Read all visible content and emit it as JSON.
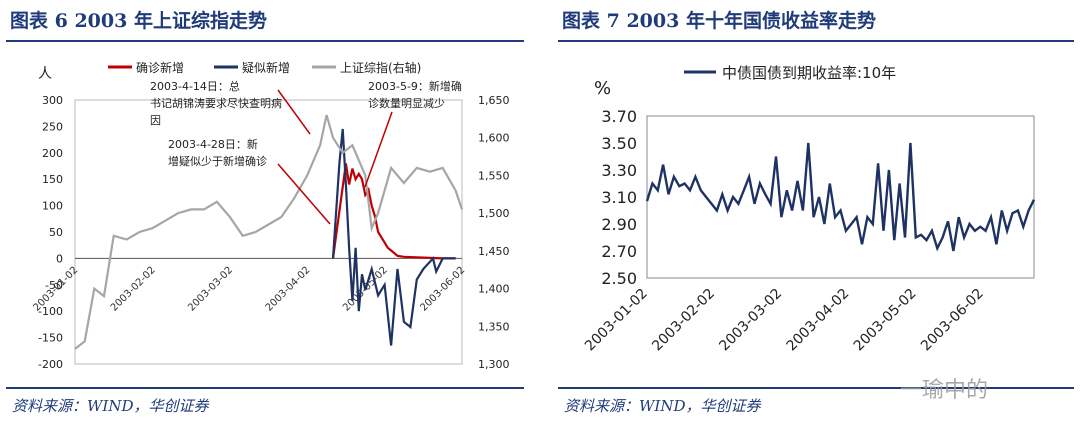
{
  "left": {
    "title": "图表 6   2003 年上证综指走势",
    "source": "资料来源：WIND，华创证券"
  },
  "right": {
    "title": "图表 7   2003 年十年国债收益率走势",
    "source": "资料来源：WIND，华创证券"
  },
  "watermark": "一瑜中的",
  "chart_data": [
    {
      "type": "line",
      "ylabel_left": "人",
      "ylim_left": [
        -200,
        300
      ],
      "yticks_left": [
        "300",
        "250",
        "200",
        "150",
        "100",
        "50",
        "0",
        "-50",
        "-100",
        "-150",
        "-200"
      ],
      "ylim_right": [
        1300,
        1650
      ],
      "yticks_right": [
        "1,650",
        "1,600",
        "1,550",
        "1,500",
        "1,450",
        "1,400",
        "1,350",
        "1,300"
      ],
      "xticks": [
        "2003-01-02",
        "2003-02-02",
        "2003-03-02",
        "2003-04-02",
        "2003-05-02",
        "2003-06-02"
      ],
      "legend": [
        "确诊新增",
        "疑似新增",
        "上证综指(右轴)"
      ],
      "colors": [
        "#c00000",
        "#1f3264",
        "#a6a6a6"
      ],
      "annotations": [
        "2003-4-14日：总书记胡锦涛要求尽快查明病因",
        "2003-5-9：新增确诊数量明显减少",
        "2003-4-28日：新增疑似少于新增确诊"
      ],
      "series": [
        {
          "name": "确诊新增",
          "axis": "left",
          "values": [
            [
              4.0,
              0
            ],
            [
              4.2,
              180
            ],
            [
              4.25,
              140
            ],
            [
              4.3,
              170
            ],
            [
              4.35,
              150
            ],
            [
              4.4,
              160
            ],
            [
              4.45,
              150
            ],
            [
              4.5,
              120
            ],
            [
              4.55,
              130
            ],
            [
              4.6,
              100
            ],
            [
              4.65,
              80
            ],
            [
              4.7,
              50
            ],
            [
              4.75,
              40
            ],
            [
              4.8,
              30
            ],
            [
              4.85,
              20
            ],
            [
              4.9,
              15
            ],
            [
              4.95,
              10
            ],
            [
              5.0,
              5
            ],
            [
              5.1,
              3
            ],
            [
              5.3,
              2
            ],
            [
              5.5,
              1
            ],
            [
              5.7,
              0
            ],
            [
              5.9,
              0
            ]
          ]
        },
        {
          "name": "疑似新增",
          "axis": "left",
          "values": [
            [
              4.0,
              0
            ],
            [
              4.1,
              180
            ],
            [
              4.15,
              245
            ],
            [
              4.2,
              140
            ],
            [
              4.25,
              20
            ],
            [
              4.3,
              -80
            ],
            [
              4.35,
              20
            ],
            [
              4.4,
              -100
            ],
            [
              4.45,
              -30
            ],
            [
              4.5,
              -60
            ],
            [
              4.6,
              -20
            ],
            [
              4.7,
              -70
            ],
            [
              4.8,
              -50
            ],
            [
              4.9,
              -165
            ],
            [
              5.0,
              -20
            ],
            [
              5.1,
              -120
            ],
            [
              5.2,
              -130
            ],
            [
              5.3,
              -40
            ],
            [
              5.4,
              -20
            ],
            [
              5.55,
              0
            ],
            [
              5.6,
              -25
            ],
            [
              5.7,
              0
            ],
            [
              5.9,
              0
            ]
          ]
        },
        {
          "name": "上证综指(右轴)",
          "axis": "right",
          "values": [
            [
              0.0,
              1320
            ],
            [
              0.15,
              1330
            ],
            [
              0.3,
              1400
            ],
            [
              0.45,
              1390
            ],
            [
              0.6,
              1470
            ],
            [
              0.8,
              1465
            ],
            [
              1.0,
              1475
            ],
            [
              1.2,
              1480
            ],
            [
              1.4,
              1490
            ],
            [
              1.6,
              1500
            ],
            [
              1.8,
              1505
            ],
            [
              2.0,
              1505
            ],
            [
              2.2,
              1515
            ],
            [
              2.4,
              1495
            ],
            [
              2.6,
              1470
            ],
            [
              2.8,
              1475
            ],
            [
              3.0,
              1485
            ],
            [
              3.2,
              1495
            ],
            [
              3.4,
              1520
            ],
            [
              3.6,
              1550
            ],
            [
              3.8,
              1590
            ],
            [
              3.9,
              1630
            ],
            [
              4.0,
              1600
            ],
            [
              4.15,
              1580
            ],
            [
              4.3,
              1590
            ],
            [
              4.5,
              1550
            ],
            [
              4.6,
              1480
            ],
            [
              4.7,
              1500
            ],
            [
              4.9,
              1560
            ],
            [
              5.1,
              1540
            ],
            [
              5.3,
              1560
            ],
            [
              5.5,
              1555
            ],
            [
              5.7,
              1560
            ],
            [
              5.9,
              1530
            ],
            [
              6.0,
              1505
            ]
          ]
        }
      ]
    },
    {
      "type": "line",
      "ylabel": "%",
      "ylim": [
        2.5,
        3.7
      ],
      "yticks": [
        "3.70",
        "3.50",
        "3.30",
        "3.10",
        "2.90",
        "2.70",
        "2.50"
      ],
      "xticks": [
        "2003-01-02",
        "2003-02-02",
        "2003-03-02",
        "2003-04-02",
        "2003-05-02",
        "2003-06-02"
      ],
      "legend": [
        "中债国债到期收益率:10年"
      ],
      "colors": [
        "#1f3264"
      ],
      "series": [
        {
          "name": "中债国债到期收益率:10年",
          "values": [
            [
              0,
              3.07
            ],
            [
              0.1,
              3.2
            ],
            [
              0.2,
              3.15
            ],
            [
              0.3,
              3.34
            ],
            [
              0.4,
              3.12
            ],
            [
              0.5,
              3.25
            ],
            [
              0.6,
              3.18
            ],
            [
              0.7,
              3.2
            ],
            [
              0.8,
              3.15
            ],
            [
              0.9,
              3.25
            ],
            [
              1.0,
              3.15
            ],
            [
              1.1,
              3.1
            ],
            [
              1.2,
              3.05
            ],
            [
              1.3,
              3.0
            ],
            [
              1.4,
              3.12
            ],
            [
              1.5,
              3.0
            ],
            [
              1.6,
              3.1
            ],
            [
              1.7,
              3.05
            ],
            [
              1.8,
              3.15
            ],
            [
              1.9,
              3.25
            ],
            [
              2.0,
              3.05
            ],
            [
              2.1,
              3.2
            ],
            [
              2.2,
              3.12
            ],
            [
              2.3,
              3.05
            ],
            [
              2.4,
              3.4
            ],
            [
              2.5,
              2.95
            ],
            [
              2.6,
              3.15
            ],
            [
              2.7,
              3.0
            ],
            [
              2.8,
              3.22
            ],
            [
              2.9,
              3.0
            ],
            [
              3.0,
              3.5
            ],
            [
              3.1,
              2.95
            ],
            [
              3.2,
              3.1
            ],
            [
              3.3,
              2.9
            ],
            [
              3.4,
              3.2
            ],
            [
              3.5,
              2.95
            ],
            [
              3.6,
              3.0
            ],
            [
              3.7,
              2.85
            ],
            [
              3.8,
              2.9
            ],
            [
              3.9,
              2.95
            ],
            [
              4.0,
              2.75
            ],
            [
              4.1,
              2.95
            ],
            [
              4.2,
              2.9
            ],
            [
              4.3,
              3.35
            ],
            [
              4.4,
              2.85
            ],
            [
              4.5,
              3.3
            ],
            [
              4.6,
              2.78
            ],
            [
              4.7,
              3.2
            ],
            [
              4.8,
              2.8
            ],
            [
              4.9,
              3.5
            ],
            [
              5.0,
              2.8
            ],
            [
              5.1,
              2.82
            ],
            [
              5.2,
              2.78
            ],
            [
              5.3,
              2.85
            ],
            [
              5.4,
              2.72
            ],
            [
              5.5,
              2.8
            ],
            [
              5.6,
              2.92
            ],
            [
              5.7,
              2.7
            ],
            [
              5.8,
              2.95
            ],
            [
              5.9,
              2.8
            ],
            [
              6.0,
              2.9
            ],
            [
              6.1,
              2.85
            ],
            [
              6.2,
              2.88
            ],
            [
              6.3,
              2.85
            ],
            [
              6.4,
              2.95
            ],
            [
              6.5,
              2.75
            ],
            [
              6.6,
              3.0
            ],
            [
              6.7,
              2.85
            ],
            [
              6.8,
              2.98
            ],
            [
              6.9,
              3.0
            ],
            [
              7.0,
              2.88
            ],
            [
              7.1,
              3.0
            ],
            [
              7.2,
              3.08
            ]
          ]
        }
      ]
    }
  ]
}
